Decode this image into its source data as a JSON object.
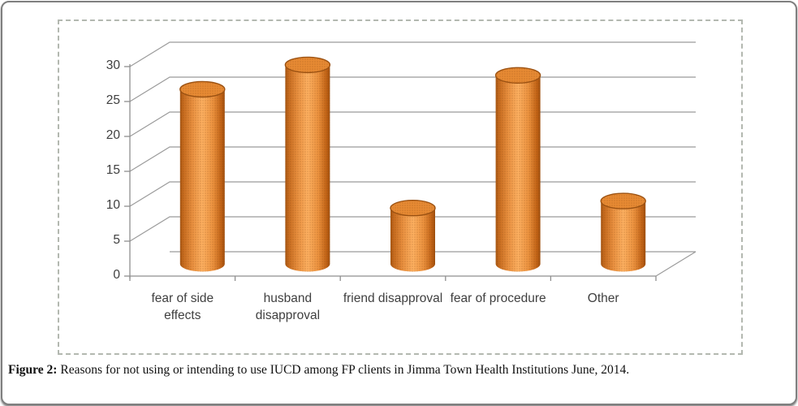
{
  "caption": {
    "label": "Figure 2:",
    "text": "Reasons for not using or intending to use IUCD among FP clients in Jimma Town Health Institutions June, 2014."
  },
  "chart_data": {
    "type": "bar",
    "style": "3d-cylinder",
    "title": "",
    "xlabel": "",
    "ylabel": "",
    "categories": [
      "fear of side effects",
      "husband disapproval",
      "friend disapproval",
      "fear of procedure",
      "Other"
    ],
    "values": [
      25,
      28.5,
      8,
      27,
      9
    ],
    "ylim": [
      0,
      30
    ],
    "yticks": [
      0,
      5,
      10,
      15,
      20,
      25,
      30
    ],
    "grid": true,
    "legend": false,
    "bar_color": "#F79646",
    "bar_edge_color": "#9c5212",
    "gridline_color": "#9b9b9b",
    "axis_color": "#8f8f8f",
    "axis_text_color": "#3f3f3f"
  }
}
